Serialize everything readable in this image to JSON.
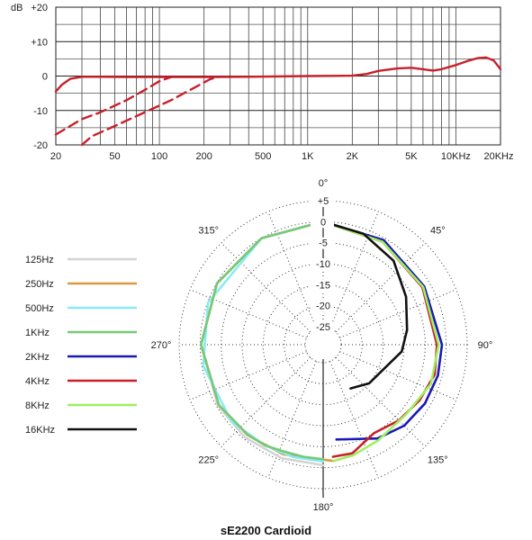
{
  "caption": "sE2200  Cardioid",
  "chart_data": [
    {
      "type": "line",
      "title": "",
      "xlabel": "",
      "ylabel": "",
      "x_scale": "log",
      "xlim": [
        20,
        20000
      ],
      "ylim": [
        -20,
        20
      ],
      "y_unit_label": "dB",
      "y_ticks": [
        {
          "value": 20,
          "label": "+20"
        },
        {
          "value": 10,
          "label": "+10"
        },
        {
          "value": 0,
          "label": "0"
        },
        {
          "value": -10,
          "label": "-10"
        },
        {
          "value": -20,
          "label": "-20"
        }
      ],
      "x_ticks": [
        {
          "value": 20,
          "label": "20"
        },
        {
          "value": 50,
          "label": "50"
        },
        {
          "value": 100,
          "label": "100"
        },
        {
          "value": 200,
          "label": "200"
        },
        {
          "value": 500,
          "label": "500"
        },
        {
          "value": 1000,
          "label": "1K"
        },
        {
          "value": 2000,
          "label": "2K"
        },
        {
          "value": 5000,
          "label": "5K"
        },
        {
          "value": 10000,
          "label": "10KHz"
        },
        {
          "value": 20000,
          "label": "20KHz"
        }
      ],
      "grid": true,
      "line_color": "#c8202a",
      "series": [
        {
          "style": "solid",
          "points": [
            [
              20,
              -4.5
            ],
            [
              22,
              -2.5
            ],
            [
              25,
              -0.8
            ],
            [
              30,
              -0.2
            ],
            [
              40,
              -0.2
            ],
            [
              60,
              -0.3
            ],
            [
              100,
              -0.3
            ],
            [
              200,
              -0.3
            ],
            [
              400,
              -0.2
            ],
            [
              1000,
              0
            ],
            [
              2000,
              0.1
            ],
            [
              2500,
              0.6
            ],
            [
              3000,
              1.5
            ],
            [
              4000,
              2.2
            ],
            [
              5000,
              2.4
            ],
            [
              6000,
              2.0
            ],
            [
              7000,
              1.6
            ],
            [
              8000,
              2.0
            ],
            [
              10000,
              3.2
            ],
            [
              12000,
              4.4
            ],
            [
              14000,
              5.2
            ],
            [
              16000,
              5.4
            ],
            [
              18000,
              4.5
            ],
            [
              20000,
              2.0
            ]
          ]
        },
        {
          "style": "dashed",
          "points": [
            [
              20,
              -17
            ],
            [
              25,
              -14.5
            ],
            [
              30,
              -12.5
            ],
            [
              40,
              -10.5
            ],
            [
              60,
              -7
            ],
            [
              80,
              -4
            ],
            [
              100,
              -1.5
            ],
            [
              120,
              -0.3
            ]
          ]
        },
        {
          "style": "dashed",
          "points": [
            [
              30,
              -20
            ],
            [
              35,
              -17.5
            ],
            [
              50,
              -14.5
            ],
            [
              80,
              -10.5
            ],
            [
              120,
              -7
            ],
            [
              170,
              -3.5
            ],
            [
              220,
              -0.9
            ],
            [
              250,
              -0.3
            ]
          ]
        }
      ]
    },
    {
      "type": "polar",
      "title": "",
      "r_unit": "dB",
      "r_range": [
        -25,
        5
      ],
      "radial_labels": [
        {
          "value": 5,
          "label": "+5"
        },
        {
          "value": 0,
          "label": "0"
        },
        {
          "value": -5,
          "label": "-5"
        },
        {
          "value": -10,
          "label": "-10"
        },
        {
          "value": -15,
          "label": "-15"
        },
        {
          "value": -20,
          "label": "-20"
        },
        {
          "value": -25,
          "label": "-25"
        }
      ],
      "angle_labels": [
        {
          "angle": 0,
          "label": "0°"
        },
        {
          "angle": 45,
          "label": "45°"
        },
        {
          "angle": 90,
          "label": "90°"
        },
        {
          "angle": 135,
          "label": "135°"
        },
        {
          "angle": 180,
          "label": "180°"
        },
        {
          "angle": 225,
          "label": "225°"
        },
        {
          "angle": 270,
          "label": "270°"
        },
        {
          "angle": 315,
          "label": "315°"
        }
      ],
      "legend_placement": "left",
      "series": [
        {
          "name": "125Hz",
          "color": "#d4d4d4",
          "points": [
            [
              180,
              -0.6
            ],
            [
              200,
              -0.5
            ],
            [
              220,
              -0.4
            ],
            [
              240,
              -0.3
            ],
            [
              270,
              -0.2
            ],
            [
              300,
              -0.1
            ],
            [
              330,
              0
            ],
            [
              360,
              0
            ]
          ]
        },
        {
          "name": "250Hz",
          "color": "#d99a3f",
          "points": [
            [
              175,
              -1.5
            ],
            [
              200,
              -1.5
            ],
            [
              220,
              -1.2
            ],
            [
              240,
              -0.6
            ],
            [
              270,
              -0.2
            ],
            [
              300,
              -0.1
            ],
            [
              330,
              0
            ],
            [
              360,
              0
            ]
          ]
        },
        {
          "name": "500Hz",
          "color": "#88ecf2",
          "points": [
            [
              180,
              -1.5
            ],
            [
              195,
              -1.6
            ],
            [
              210,
              -1.6
            ],
            [
              230,
              -0.8
            ],
            [
              260,
              -0.3
            ],
            [
              290,
              -0.1
            ],
            [
              330,
              0
            ],
            [
              360,
              0
            ]
          ]
        },
        {
          "name": "1KHz",
          "color": "#78c878",
          "points": [
            [
              180,
              -2
            ],
            [
              190,
              -2.2
            ],
            [
              200,
              -2.2
            ],
            [
              210,
              -1.6
            ],
            [
              220,
              -1.3
            ],
            [
              240,
              -0.6
            ],
            [
              270,
              -0.2
            ],
            [
              300,
              -0.1
            ],
            [
              330,
              0
            ],
            [
              360,
              0
            ]
          ]
        },
        {
          "name": "2KHz",
          "color": "#1a1ab4",
          "points": [
            [
              0,
              0
            ],
            [
              30,
              -0.5
            ],
            [
              60,
              -1.5
            ],
            [
              90,
              -1
            ],
            [
              105,
              -1
            ],
            [
              120,
              -1.3
            ],
            [
              135,
              -2
            ],
            [
              150,
              -3.5
            ],
            [
              165,
              -6
            ],
            [
              172,
              -6.5
            ]
          ]
        },
        {
          "name": "4KHz",
          "color": "#c8202a",
          "points": [
            [
              0,
              0
            ],
            [
              30,
              -1
            ],
            [
              60,
              -2
            ],
            [
              90,
              -2.2
            ],
            [
              105,
              -1.8
            ],
            [
              120,
              -2.8
            ],
            [
              135,
              -3.8
            ],
            [
              150,
              -5
            ],
            [
              165,
              -2.5
            ],
            [
              175,
              -2.5
            ]
          ]
        },
        {
          "name": "8KHz",
          "color": "#9ff060",
          "points": [
            [
              0,
              0
            ],
            [
              30,
              -1
            ],
            [
              60,
              -1.8
            ],
            [
              90,
              -1.8
            ],
            [
              110,
              -2
            ],
            [
              130,
              -3.5
            ],
            [
              150,
              -3
            ],
            [
              165,
              -2
            ],
            [
              175,
              -1.5
            ]
          ]
        },
        {
          "name": "16KHz",
          "color": "#111111",
          "points": [
            [
              0,
              0
            ],
            [
              20,
              -1.2
            ],
            [
              40,
              -3.2
            ],
            [
              60,
              -6.5
            ],
            [
              80,
              -9
            ],
            [
              95,
              -10.5
            ],
            [
              110,
              -13.5
            ],
            [
              130,
              -15
            ],
            [
              148,
              -17
            ]
          ]
        }
      ]
    }
  ]
}
